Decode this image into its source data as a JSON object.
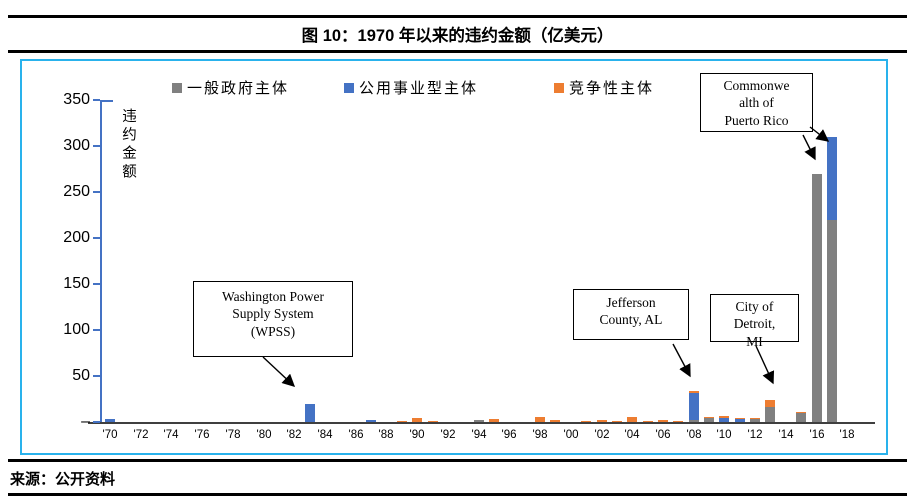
{
  "page": {
    "figure_title": "图 10：1970 年以来的违约金额（亿美元）",
    "source": "来源：公开资料"
  },
  "chart_data": {
    "type": "bar",
    "stacked": true,
    "title": "图 10：1970 年以来的违约金额（亿美元）",
    "ylabel": "违约金额",
    "xlabel": "",
    "unit": "亿美元",
    "ylim": [
      0,
      350
    ],
    "yticks": [
      0,
      50,
      100,
      150,
      200,
      250,
      300,
      350
    ],
    "ytick_labels": [
      "–",
      "50",
      "100",
      "150",
      "200",
      "250",
      "300",
      "350"
    ],
    "x_start": 1970,
    "x_end": 2018,
    "xtick_years": [
      1970,
      1972,
      1974,
      1976,
      1978,
      1980,
      1982,
      1984,
      1986,
      1988,
      1990,
      1992,
      1994,
      1996,
      1998,
      2000,
      2002,
      2004,
      2006,
      2008,
      2010,
      2012,
      2014,
      2016,
      2018
    ],
    "xtick_labels": [
      "'70",
      "'72",
      "'74",
      "'76",
      "'78",
      "'80",
      "'82",
      "'84",
      "'86",
      "'88",
      "'90",
      "'92",
      "'94",
      "'96",
      "'98",
      "'00",
      "'02",
      "'04",
      "'06",
      "'08",
      "'10",
      "'12",
      "'14",
      "'16",
      "'18"
    ],
    "grid": false,
    "legend_position": "top",
    "axis_color": "#4472C4",
    "x_axis_color": "#3F3F3F",
    "frame_border_color": "#29B2EC",
    "series": [
      {
        "key": "general",
        "name": "一般政府主体",
        "color": "#808080"
      },
      {
        "key": "utility",
        "name": "公用事业型主体",
        "color": "#4472C4"
      },
      {
        "key": "competitive",
        "name": "竞争性主体",
        "color": "#ED7D31"
      }
    ],
    "bars": [
      {
        "year": 1970,
        "utility": 3
      },
      {
        "year": 1983,
        "utility": 20
      },
      {
        "year": 1987,
        "utility": 2
      },
      {
        "year": 1989,
        "competitive": 1
      },
      {
        "year": 1990,
        "competitive": 4
      },
      {
        "year": 1991,
        "competitive": 1
      },
      {
        "year": 1994,
        "general": 2
      },
      {
        "year": 1995,
        "competitive": 3
      },
      {
        "year": 1998,
        "competitive": 5
      },
      {
        "year": 1999,
        "competitive": 2
      },
      {
        "year": 2001,
        "competitive": 1
      },
      {
        "year": 2002,
        "competitive": 2
      },
      {
        "year": 2003,
        "competitive": 1
      },
      {
        "year": 2004,
        "competitive": 5
      },
      {
        "year": 2005,
        "competitive": 1
      },
      {
        "year": 2006,
        "competitive": 2
      },
      {
        "year": 2007,
        "competitive": 1
      },
      {
        "year": 2008,
        "general": 2,
        "utility": 29,
        "competitive": 2
      },
      {
        "year": 2009,
        "general": 4,
        "competitive": 1
      },
      {
        "year": 2010,
        "utility": 4,
        "competitive": 2
      },
      {
        "year": 2011,
        "utility": 3,
        "competitive": 1
      },
      {
        "year": 2012,
        "general": 3,
        "competitive": 1
      },
      {
        "year": 2013,
        "general": 16,
        "competitive": 8
      },
      {
        "year": 2015,
        "general": 10,
        "competitive": 1
      },
      {
        "year": 2016,
        "general": 270
      },
      {
        "year": 2017,
        "general": 220,
        "utility": 90
      }
    ],
    "annotations": [
      {
        "id": "wpss",
        "text": "Washington Power\nSupply System\n(WPSS)",
        "target_year": 1983
      },
      {
        "id": "jefferson",
        "text": "Jefferson\nCounty, AL",
        "target_year": 2008
      },
      {
        "id": "detroit",
        "text": "City of\nDetroit,\nMI",
        "target_year": 2013
      },
      {
        "id": "puerto-rico",
        "text": "Commonwe\nalth of\nPuerto Rico",
        "target_years": [
          2016,
          2017
        ]
      }
    ]
  }
}
